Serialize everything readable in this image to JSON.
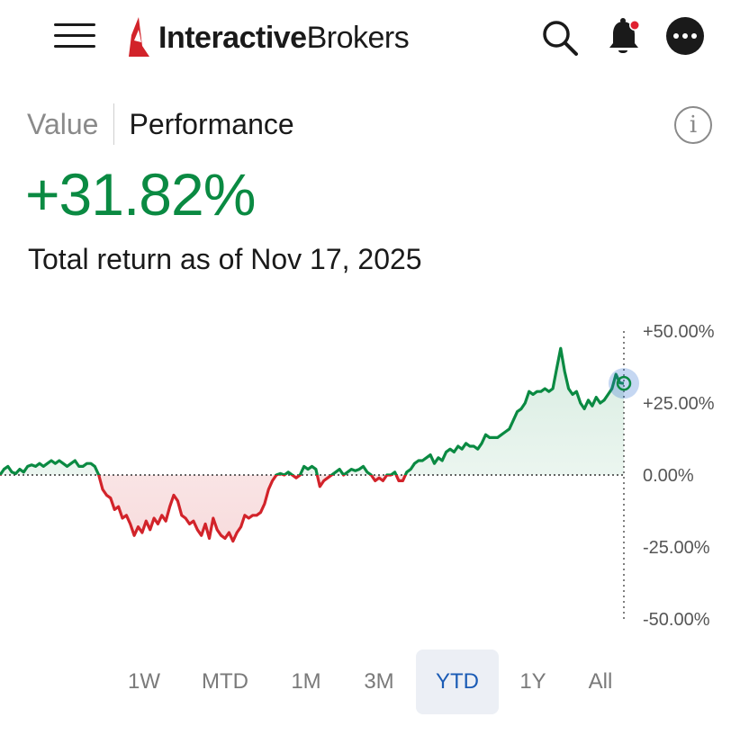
{
  "header": {
    "brand_bold": "Interactive",
    "brand_light": "Brokers",
    "icons": [
      "menu-icon",
      "search-icon",
      "bell-icon",
      "more-icon"
    ],
    "notification_dot_color": "#e02030"
  },
  "tabs": {
    "value_label": "Value",
    "performance_label": "Performance",
    "active": "Performance"
  },
  "summary": {
    "return_value": "+31.82%",
    "caption": "Total return as of Nov 17, 2025",
    "positive_color": "#0a8a42",
    "negative_color": "#d2232a"
  },
  "ranges": {
    "items": [
      "1W",
      "MTD",
      "1M",
      "3M",
      "YTD",
      "1Y",
      "All"
    ],
    "selected": "YTD"
  },
  "chart_data": {
    "type": "area",
    "ylim": [
      -50,
      50
    ],
    "y_ticks": [
      "+50.00%",
      "+25.00%",
      "0.00%",
      "-25.00%",
      "-50.00%"
    ],
    "y_tick_values": [
      50,
      25,
      0,
      -25,
      -50
    ],
    "baseline": 0,
    "grid": false,
    "current_value": 31.82,
    "series": [
      {
        "values": [
          0,
          2,
          3,
          1,
          0.5,
          2,
          1,
          3,
          3.5,
          3,
          4,
          3,
          4,
          5,
          4,
          5,
          4,
          3,
          4,
          5,
          3,
          3,
          4,
          4,
          3,
          0,
          -5,
          -7,
          -8,
          -12,
          -11,
          -15,
          -14,
          -17,
          -21,
          -18,
          -20,
          -16,
          -19,
          -15,
          -17,
          -14,
          -16,
          -11,
          -7,
          -9,
          -14,
          -15,
          -17,
          -16,
          -19,
          -21,
          -17,
          -22,
          -15,
          -19,
          -21,
          -22,
          -20,
          -23,
          -20,
          -18,
          -14,
          -15,
          -14,
          -14,
          -13,
          -10,
          -5,
          -2,
          0,
          0.5,
          0,
          1,
          0,
          -1,
          0,
          3,
          2,
          3,
          2,
          -4,
          -2,
          -1,
          0,
          1,
          2,
          0,
          1,
          2,
          1.5,
          2,
          3,
          1,
          0,
          -2,
          -1,
          -2,
          0,
          0,
          1,
          -2,
          -2,
          1,
          2,
          4,
          5,
          5,
          6,
          7,
          4,
          6,
          5,
          8,
          9,
          8,
          10,
          9,
          11,
          10,
          10,
          9,
          11,
          14,
          13,
          13,
          13,
          14,
          15,
          16,
          19,
          22,
          23,
          25,
          29,
          28,
          29,
          29,
          30,
          29,
          30,
          37,
          44,
          36,
          30,
          28,
          29,
          25,
          23,
          26,
          24,
          27,
          25,
          26,
          28,
          30,
          35,
          32,
          31.82
        ]
      }
    ]
  }
}
